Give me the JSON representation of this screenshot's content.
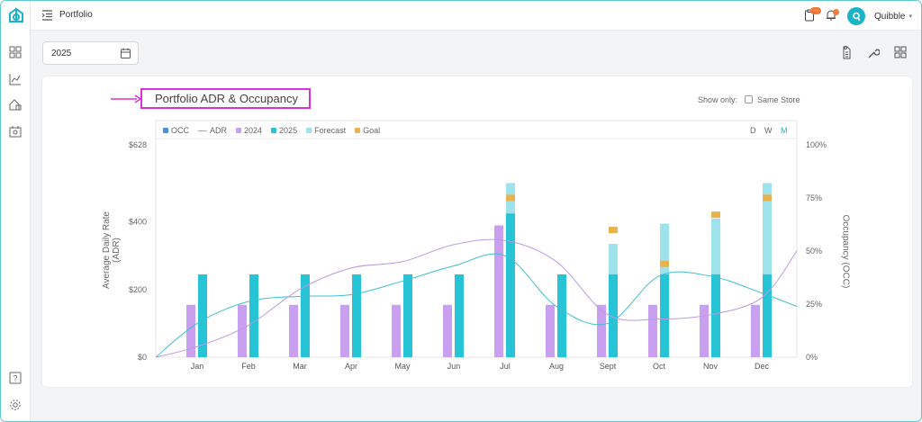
{
  "topbar": {
    "breadcrumb": "Portfolio",
    "badge_text": "···",
    "user_name": "Quibble",
    "avatar_letter": "q"
  },
  "filters": {
    "year": "2025"
  },
  "card": {
    "title": "Portfolio ADR & Occupancy",
    "show_only_label": "Show only:",
    "same_store_label": "Same Store",
    "same_store_checked": false
  },
  "legend": [
    {
      "label": "OCC",
      "color": "#4a90e2"
    },
    {
      "label": "ADR",
      "color": "#7fb0d0"
    },
    {
      "label": "2024",
      "color": "#c9a0ef"
    },
    {
      "label": "2025",
      "color": "#26c4d4"
    },
    {
      "label": "Forecast",
      "color": "#9ee3ec"
    },
    {
      "label": "Goal",
      "color": "#e8b24f"
    }
  ],
  "periods": [
    {
      "label": "D",
      "active": false
    },
    {
      "label": "W",
      "active": false
    },
    {
      "label": "M",
      "active": true
    }
  ],
  "chart_data": {
    "type": "bar",
    "categories": [
      "Jan",
      "Feb",
      "Mar",
      "Apr",
      "May",
      "Jun",
      "Jul",
      "Aug",
      "Sept",
      "Oct",
      "Nov",
      "Dec"
    ],
    "ylabel": "Average Daily Rate (ADR)",
    "y2label": "Occupancy (OCC)",
    "y_ticks": [
      "$0",
      "$200",
      "$400",
      "$628"
    ],
    "y2_ticks": [
      "0%",
      "25%",
      "50%",
      "75%",
      "100%"
    ],
    "ylim": [
      0,
      628
    ],
    "y2lim": [
      0,
      100
    ],
    "series": [
      {
        "name": "2024",
        "values": [
          155,
          155,
          155,
          155,
          155,
          155,
          390,
          155,
          155,
          155,
          155,
          155
        ]
      },
      {
        "name": "2025",
        "values": [
          245,
          245,
          245,
          245,
          245,
          245,
          425,
          245,
          245,
          245,
          245,
          245
        ]
      },
      {
        "name": "Forecast",
        "values": [
          null,
          null,
          null,
          null,
          null,
          null,
          515,
          null,
          335,
          395,
          410,
          515
        ]
      },
      {
        "name": "Goal",
        "values": [
          null,
          null,
          null,
          null,
          null,
          null,
          470,
          null,
          375,
          275,
          420,
          470
        ]
      },
      {
        "name": "ADR",
        "values": [
          100,
          165,
          180,
          185,
          225,
          270,
          300,
          150,
          100,
          240,
          240,
          190
        ]
      },
      {
        "name": "OCC",
        "values": [
          5,
          15,
          32,
          42,
          45,
          53,
          55,
          45,
          20,
          18,
          20,
          28
        ]
      }
    ],
    "grid": false,
    "legend_position": "top-left"
  }
}
